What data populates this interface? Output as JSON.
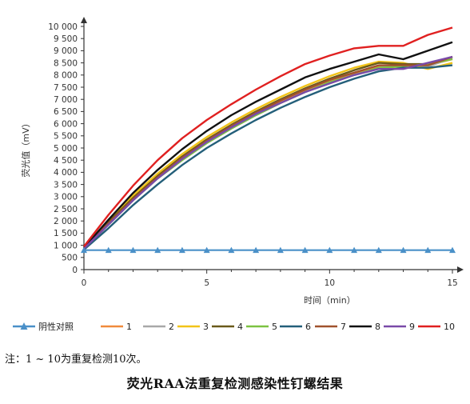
{
  "chart_data": {
    "type": "line",
    "title": "",
    "xlabel": "时间（min）",
    "ylabel": "荧光值（mV）",
    "xlim": [
      0,
      15
    ],
    "ylim": [
      0,
      10000
    ],
    "x_ticks": [
      0,
      5,
      10,
      15
    ],
    "y_tick_labels": [
      "0",
      "500",
      "1 000",
      "1 500",
      "2 000",
      "2 500",
      "3 000",
      "3 500",
      "4 000",
      "4 500",
      "5 000",
      "5 500",
      "6 000",
      "6 500",
      "7 000",
      "7 500",
      "8 000",
      "8 500",
      "9 000",
      "9 500",
      "10 000"
    ],
    "y_ticks": [
      0,
      500,
      1000,
      1500,
      2000,
      2500,
      3000,
      3500,
      4000,
      4500,
      5000,
      5500,
      6000,
      6500,
      7000,
      7500,
      8000,
      8500,
      9000,
      9500,
      10000
    ],
    "x": [
      0,
      1,
      2,
      3,
      4,
      5,
      6,
      7,
      8,
      9,
      10,
      11,
      12,
      13,
      14,
      15
    ],
    "legend_position": "bottom",
    "grid": false,
    "series": [
      {
        "name": "阴性对照",
        "color": "#4a90c8",
        "marker": "triangle",
        "values": [
          800,
          800,
          800,
          800,
          800,
          800,
          800,
          800,
          800,
          800,
          800,
          800,
          800,
          800,
          800,
          800
        ]
      },
      {
        "name": "1",
        "color": "#f08a3c",
        "values": [
          880,
          1900,
          2900,
          3800,
          4550,
          5250,
          5850,
          6400,
          6900,
          7350,
          7750,
          8050,
          8350,
          8350,
          8400,
          8650
        ]
      },
      {
        "name": "2",
        "color": "#a8a8a8",
        "values": [
          850,
          1850,
          2850,
          3750,
          4500,
          5200,
          5800,
          6350,
          6850,
          7300,
          7700,
          8000,
          8300,
          8450,
          8350,
          8700
        ]
      },
      {
        "name": "3",
        "color": "#f2c418",
        "values": [
          900,
          2000,
          3050,
          3950,
          4750,
          5450,
          6050,
          6600,
          7100,
          7550,
          7950,
          8300,
          8550,
          8500,
          8250,
          8500
        ]
      },
      {
        "name": "4",
        "color": "#6a5a1a",
        "values": [
          880,
          1950,
          2950,
          3850,
          4650,
          5350,
          5950,
          6500,
          7000,
          7450,
          7850,
          8200,
          8500,
          8450,
          8450,
          8750
        ]
      },
      {
        "name": "5",
        "color": "#7cc242",
        "values": [
          860,
          1850,
          2850,
          3750,
          4500,
          5200,
          5800,
          6350,
          6850,
          7300,
          7700,
          8000,
          8300,
          8350,
          8450,
          8650
        ]
      },
      {
        "name": "6",
        "color": "#245f7a",
        "values": [
          820,
          1700,
          2650,
          3500,
          4300,
          5000,
          5600,
          6150,
          6650,
          7100,
          7500,
          7850,
          8150,
          8300,
          8300,
          8400
        ]
      },
      {
        "name": "7",
        "color": "#a0522d",
        "values": [
          870,
          1900,
          2900,
          3800,
          4600,
          5300,
          5900,
          6450,
          6950,
          7400,
          7800,
          8100,
          8400,
          8400,
          8400,
          8750
        ]
      },
      {
        "name": "8",
        "color": "#111111",
        "values": [
          900,
          2050,
          3150,
          4100,
          4950,
          5700,
          6350,
          6900,
          7400,
          7900,
          8250,
          8550,
          8850,
          8650,
          9000,
          9350
        ]
      },
      {
        "name": "9",
        "color": "#7a4aa8",
        "values": [
          860,
          1850,
          2850,
          3750,
          4550,
          5250,
          5850,
          6400,
          6850,
          7300,
          7650,
          8000,
          8250,
          8250,
          8500,
          8750
        ]
      },
      {
        "name": "10",
        "color": "#e02020",
        "values": [
          950,
          2250,
          3450,
          4500,
          5400,
          6150,
          6800,
          7400,
          7950,
          8450,
          8800,
          9100,
          9200,
          9200,
          9650,
          9950
        ]
      }
    ]
  },
  "note": "注：1 ~ 10为重复检测10次。",
  "caption": "荧光RAA法重复检测感染性钉螺结果"
}
